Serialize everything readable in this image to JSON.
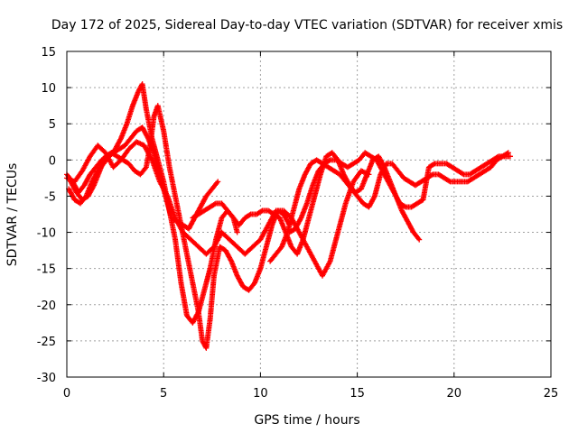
{
  "chart_data": {
    "type": "scatter",
    "title": "Day 172 of 2025, Sidereal Day-to-day VTEC variation (SDTVAR) for receiver xmis",
    "xlabel": "GPS time / hours",
    "ylabel": "SDTVAR / TECUs",
    "xlim": [
      0,
      25
    ],
    "ylim": [
      -30,
      15
    ],
    "xticks": [
      0,
      5,
      10,
      15,
      20,
      25
    ],
    "yticks": [
      15,
      10,
      5,
      0,
      -5,
      -10,
      -15,
      -20,
      -25,
      -30
    ],
    "grid": true,
    "marker": "+",
    "color": "#ff0000",
    "series": [
      {
        "x": [
          0.0,
          0.3,
          0.6,
          0.9,
          1.2,
          1.5,
          1.8,
          2.1,
          2.4,
          2.7,
          3.0,
          3.3,
          3.6,
          3.9,
          4.2,
          4.5,
          4.8,
          5.1,
          5.4,
          5.7,
          6.0,
          6.3,
          6.6,
          6.9,
          7.2,
          7.5,
          7.8
        ],
        "y": [
          -2.0,
          -3.0,
          -4.5,
          -3.5,
          -2.0,
          -1.0,
          0.0,
          0.5,
          1.0,
          1.5,
          2.0,
          3.0,
          4.0,
          4.5,
          3.0,
          1.0,
          -2.0,
          -5.0,
          -8.0,
          -8.5,
          -9.0,
          -9.5,
          -8.0,
          -6.5,
          -5.0,
          -4.0,
          -3.0
        ]
      },
      {
        "x": [
          0.1,
          0.4,
          0.7,
          1.0,
          1.3,
          1.6,
          1.9,
          2.2,
          2.5,
          2.8,
          3.1,
          3.4,
          3.7,
          3.9,
          4.1,
          4.4,
          4.7,
          5.0,
          5.3,
          5.6,
          5.9,
          6.2,
          6.5,
          6.8,
          7.1,
          7.4,
          7.7,
          8.0,
          8.3,
          8.6,
          8.8
        ],
        "y": [
          -4.0,
          -5.5,
          -6.0,
          -5.0,
          -3.0,
          -1.5,
          -0.5,
          0.5,
          1.5,
          3.0,
          5.0,
          7.5,
          9.5,
          10.5,
          7.0,
          3.0,
          0.0,
          -3.0,
          -7.0,
          -11.0,
          -17.0,
          -21.5,
          -22.5,
          -21.0,
          -18.0,
          -15.0,
          -11.0,
          -8.0,
          -7.0,
          -8.0,
          -10.0
        ]
      },
      {
        "x": [
          0.2,
          0.5,
          0.8,
          1.1,
          1.4,
          1.7,
          2.0,
          2.3,
          2.6,
          2.9,
          3.2,
          3.5,
          3.8,
          4.1,
          4.3,
          4.5,
          4.7,
          5.0,
          5.3,
          5.6,
          5.9,
          6.2,
          6.5,
          6.8,
          7.0,
          7.2,
          7.4,
          7.6,
          7.9,
          8.2,
          8.5,
          8.8,
          9.1,
          9.4,
          9.7,
          10.0,
          10.3,
          10.6,
          10.9,
          11.2,
          11.5
        ],
        "y": [
          -3.0,
          -4.5,
          -5.5,
          -5.0,
          -3.5,
          -1.5,
          0.5,
          1.0,
          0.5,
          0.0,
          -0.5,
          -1.5,
          -2.0,
          -1.0,
          2.0,
          6.0,
          7.5,
          4.0,
          -1.0,
          -5.0,
          -9.0,
          -13.0,
          -17.0,
          -21.0,
          -25.0,
          -26.0,
          -22.0,
          -16.0,
          -12.0,
          -12.5,
          -14.0,
          -16.0,
          -17.5,
          -18.0,
          -17.0,
          -15.0,
          -12.0,
          -9.0,
          -7.0,
          -7.5,
          -9.0
        ]
      },
      {
        "x": [
          0.0,
          0.4,
          0.8,
          1.2,
          1.6,
          2.0,
          2.4,
          2.8,
          3.2,
          3.6,
          4.0,
          4.4,
          4.8,
          5.2,
          5.6,
          6.0,
          6.4,
          6.8,
          7.2,
          7.6,
          8.0,
          8.4,
          8.8,
          9.2,
          9.6,
          10.0,
          10.4,
          10.8,
          11.2,
          11.6,
          12.0,
          12.4,
          12.8,
          13.2,
          13.6,
          14.0,
          14.4,
          14.8,
          15.2,
          15.6
        ],
        "y": [
          -2.5,
          -3.0,
          -1.5,
          0.5,
          2.0,
          1.0,
          -1.0,
          0.0,
          1.5,
          2.5,
          2.0,
          0.0,
          -3.0,
          -5.0,
          -8.0,
          -10.0,
          -11.0,
          -12.0,
          -13.0,
          -12.0,
          -10.0,
          -11.0,
          -12.0,
          -13.0,
          -12.0,
          -11.0,
          -9.0,
          -7.0,
          -7.0,
          -8.0,
          -10.0,
          -12.0,
          -14.0,
          -16.0,
          -14.0,
          -10.0,
          -6.0,
          -3.0,
          -1.5,
          -2.0
        ]
      },
      {
        "x": [
          6.5,
          6.8,
          7.1,
          7.4,
          7.7,
          8.0,
          8.3,
          8.6,
          8.9,
          9.2,
          9.5,
          9.8,
          10.1,
          10.4,
          10.7,
          11.0,
          11.3,
          11.6,
          11.9,
          12.2,
          12.5,
          12.8,
          13.1,
          13.4,
          13.7,
          14.0,
          14.3,
          14.6,
          14.9,
          15.2,
          15.5,
          15.8,
          16.1,
          16.4,
          16.7,
          17.0,
          17.3,
          17.6,
          17.9,
          18.2
        ],
        "y": [
          -8.0,
          -7.5,
          -7.0,
          -6.5,
          -6.0,
          -6.0,
          -7.0,
          -8.0,
          -9.0,
          -8.0,
          -7.5,
          -7.5,
          -7.0,
          -7.0,
          -7.5,
          -8.0,
          -10.0,
          -12.0,
          -13.0,
          -11.0,
          -8.0,
          -5.0,
          -2.0,
          0.5,
          1.0,
          0.0,
          -2.0,
          -3.5,
          -4.5,
          -4.0,
          -2.0,
          0.0,
          0.5,
          -1.0,
          -3.0,
          -5.0,
          -7.0,
          -8.5,
          -10.0,
          -11.0
        ]
      },
      {
        "x": [
          11.5,
          11.8,
          12.1,
          12.4,
          12.7,
          13.0,
          13.3,
          13.6,
          13.9,
          14.2,
          14.5,
          14.8,
          15.1,
          15.4,
          15.7,
          16.0,
          16.3,
          16.6,
          16.9,
          17.2,
          17.5,
          17.8,
          18.1,
          18.4,
          18.7,
          19.0,
          19.3,
          19.6,
          19.9,
          20.2,
          20.5,
          20.8,
          21.1,
          21.4,
          21.7,
          22.0,
          22.3,
          22.6,
          22.9
        ],
        "y": [
          -10.0,
          -9.5,
          -8.0,
          -6.0,
          -3.5,
          -1.5,
          -0.5,
          0.0,
          0.0,
          -0.5,
          -1.0,
          -0.5,
          0.0,
          1.0,
          0.5,
          0.0,
          -1.5,
          -3.0,
          -4.5,
          -6.0,
          -6.5,
          -6.5,
          -6.0,
          -5.5,
          -1.0,
          -0.5,
          -0.5,
          -0.5,
          -1.0,
          -1.5,
          -2.0,
          -2.0,
          -1.5,
          -1.0,
          -0.5,
          0.0,
          0.5,
          0.5,
          0.5
        ]
      },
      {
        "x": [
          10.5,
          10.8,
          11.1,
          11.4,
          11.7,
          12.0,
          12.3,
          12.6,
          12.9,
          13.2,
          13.5,
          13.8,
          14.1,
          14.4,
          14.7,
          15.0,
          15.3,
          15.6,
          15.9,
          16.2,
          16.5,
          16.8,
          17.1,
          17.4,
          17.7,
          18.0,
          18.3,
          18.6,
          18.9,
          19.2,
          19.5,
          19.8,
          20.1,
          20.4,
          20.7,
          21.0,
          21.3,
          21.6,
          21.9,
          22.2,
          22.5,
          22.8
        ],
        "y": [
          -14.0,
          -13.0,
          -12.0,
          -10.0,
          -7.0,
          -4.0,
          -2.0,
          -0.5,
          0.0,
          -0.5,
          -1.0,
          -1.5,
          -2.0,
          -3.0,
          -4.0,
          -5.0,
          -6.0,
          -6.5,
          -5.0,
          -2.0,
          -0.5,
          -0.5,
          -1.5,
          -2.5,
          -3.0,
          -3.5,
          -3.0,
          -2.5,
          -2.0,
          -2.0,
          -2.5,
          -3.0,
          -3.0,
          -3.0,
          -3.0,
          -2.5,
          -2.0,
          -1.5,
          -1.0,
          0.0,
          0.5,
          1.0
        ]
      }
    ]
  }
}
